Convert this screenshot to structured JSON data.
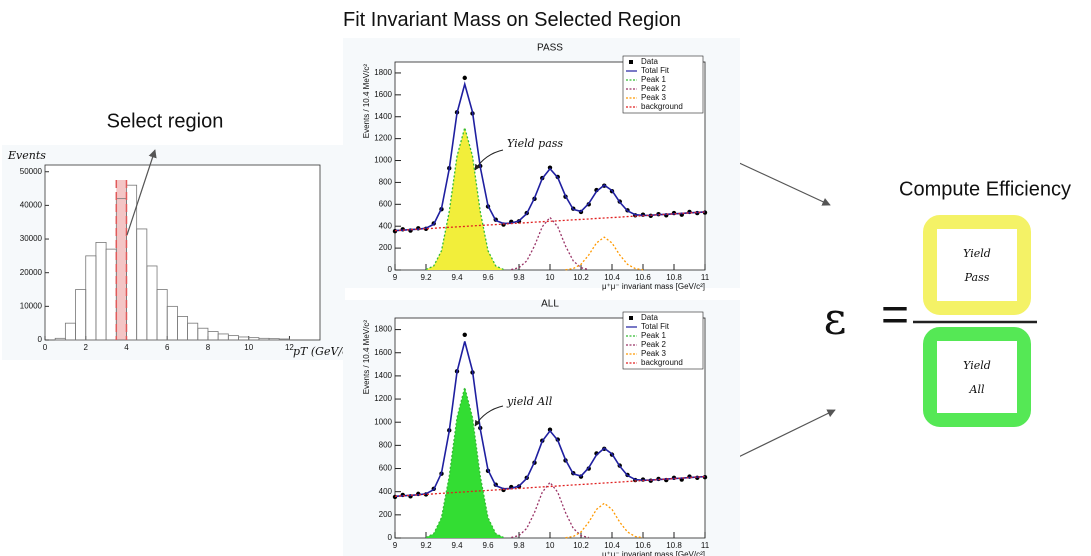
{
  "titles": {
    "select": "Select region",
    "fit": "Fit Invariant Mass on Selected Region",
    "compute": "Compute Efficiency"
  },
  "histogram": {
    "y_label": "Events",
    "x_label": "pT (GeV/c)",
    "bins": [
      0,
      0.5,
      1,
      1.5,
      2,
      2.5,
      3,
      3.5,
      4,
      4.5,
      5,
      5.5,
      6,
      6.5,
      7,
      7.5,
      8,
      8.5,
      9,
      9.5,
      10,
      10.5,
      11,
      11.5,
      12
    ],
    "counts": [
      0,
      500,
      5000,
      15000,
      25000,
      29000,
      27000,
      42000,
      46000,
      33000,
      22000,
      15000,
      10000,
      7000,
      5000,
      3500,
      2500,
      1800,
      1300,
      900,
      700,
      500,
      400,
      300
    ],
    "selected": [
      3.5,
      4.0
    ],
    "xlim": [
      0,
      13.5
    ],
    "ylim": [
      0,
      52000
    ],
    "xticks": [
      0,
      2,
      4,
      6,
      8,
      10,
      12
    ],
    "yticks": [
      0,
      10000,
      20000,
      30000,
      40000,
      50000
    ],
    "color": "#777777",
    "selected_color": "#e05a5a"
  },
  "fit": {
    "x_label": "μ⁺μ⁻ invariant mass [GeV/c²]",
    "y_label": "Events / 10.4 MeV/c²",
    "xlim": [
      9,
      11
    ],
    "ylim": [
      0,
      1900
    ],
    "xticks": [
      9,
      9.2,
      9.4,
      9.6,
      9.8,
      10,
      10.2,
      10.4,
      10.6,
      10.8,
      11
    ],
    "yticks": [
      0,
      200,
      400,
      600,
      800,
      1000,
      1200,
      1400,
      1600,
      1800
    ],
    "x": [
      9,
      9.05,
      9.1,
      9.15,
      9.2,
      9.25,
      9.3,
      9.35,
      9.4,
      9.45,
      9.5,
      9.55,
      9.6,
      9.65,
      9.7,
      9.75,
      9.8,
      9.85,
      9.9,
      9.95,
      10,
      10.05,
      10.1,
      10.15,
      10.2,
      10.25,
      10.3,
      10.35,
      10.4,
      10.45,
      10.5,
      10.55,
      10.6,
      10.65,
      10.7,
      10.75,
      10.8,
      10.85,
      10.9,
      10.95,
      11
    ],
    "series": [
      {
        "name": "Data",
        "color": "#000000",
        "style": "points",
        "values": [
          355,
          372,
          360,
          381,
          376,
          425,
          555,
          930,
          1440,
          1755,
          1430,
          950,
          580,
          460,
          415,
          440,
          445,
          520,
          650,
          840,
          935,
          850,
          670,
          560,
          530,
          600,
          730,
          770,
          720,
          625,
          545,
          500,
          505,
          495,
          510,
          500,
          520,
          505,
          530,
          520,
          525
        ]
      },
      {
        "name": "Total Fit",
        "color": "#1f1fa0",
        "style": "line",
        "values": [
          360,
          364,
          369,
          373,
          382,
          418,
          562,
          924,
          1434,
          1698,
          1443,
          941,
          587,
          452,
          425,
          428,
          449,
          515,
          657,
          836,
          925,
          844,
          676,
          554,
          535,
          607,
          718,
          775,
          726,
          620,
          540,
          505,
          498,
          500,
          505,
          509,
          513,
          517,
          522,
          526,
          530
        ]
      },
      {
        "name": "Peak 1",
        "color": "#33bb33",
        "style": "dotted",
        "filled": true,
        "values": [
          null,
          null,
          null,
          null,
          5,
          37,
          176,
          534,
          1040,
          1300,
          1040,
          534,
          176,
          37,
          5,
          null,
          null,
          null,
          null,
          null,
          null,
          null,
          null,
          null,
          null,
          null,
          null,
          null,
          null,
          null,
          null,
          null,
          null,
          null,
          null,
          null,
          null,
          null,
          null,
          null,
          null
        ]
      },
      {
        "name": "Peak 2",
        "color": "#993366",
        "style": "dotted",
        "values": [
          null,
          null,
          null,
          null,
          null,
          null,
          null,
          null,
          null,
          null,
          null,
          null,
          null,
          null,
          null,
          4,
          21,
          83,
          220,
          395,
          480,
          395,
          220,
          83,
          21,
          4,
          null,
          null,
          null,
          null,
          null,
          null,
          null,
          null,
          null,
          null,
          null,
          null,
          null,
          null,
          null
        ]
      },
      {
        "name": "Peak 3",
        "color": "#ff9900",
        "style": "dotted",
        "values": [
          null,
          null,
          null,
          null,
          null,
          null,
          null,
          null,
          null,
          null,
          null,
          null,
          null,
          null,
          null,
          null,
          null,
          null,
          null,
          null,
          null,
          null,
          2,
          13,
          52,
          137,
          247,
          300,
          247,
          137,
          52,
          13,
          2,
          null,
          null,
          null,
          null,
          null,
          null,
          null,
          null
        ]
      },
      {
        "name": "background",
        "color": "#e02020",
        "style": "dotted",
        "values": [
          360,
          364,
          369,
          373,
          377,
          381,
          386,
          390,
          394,
          398,
          403,
          407,
          411,
          415,
          420,
          424,
          428,
          432,
          437,
          441,
          445,
          449,
          454,
          458,
          462,
          466,
          471,
          475,
          479,
          483,
          488,
          492,
          496,
          500,
          505,
          509,
          513,
          517,
          522,
          526,
          530
        ]
      }
    ]
  },
  "plots": [
    {
      "title": "PASS",
      "annotation": "Yield pass",
      "fill": "#f2ee3a"
    },
    {
      "title": "ALL",
      "annotation": "yield All",
      "fill": "#33dd33"
    }
  ],
  "formula": {
    "symbol": "ε",
    "equals": "=",
    "numerator": [
      "Yield",
      "Pass"
    ],
    "denominator": [
      "Yield",
      "All"
    ],
    "numerator_color": "#f4f266",
    "denominator_color": "#55e855"
  }
}
